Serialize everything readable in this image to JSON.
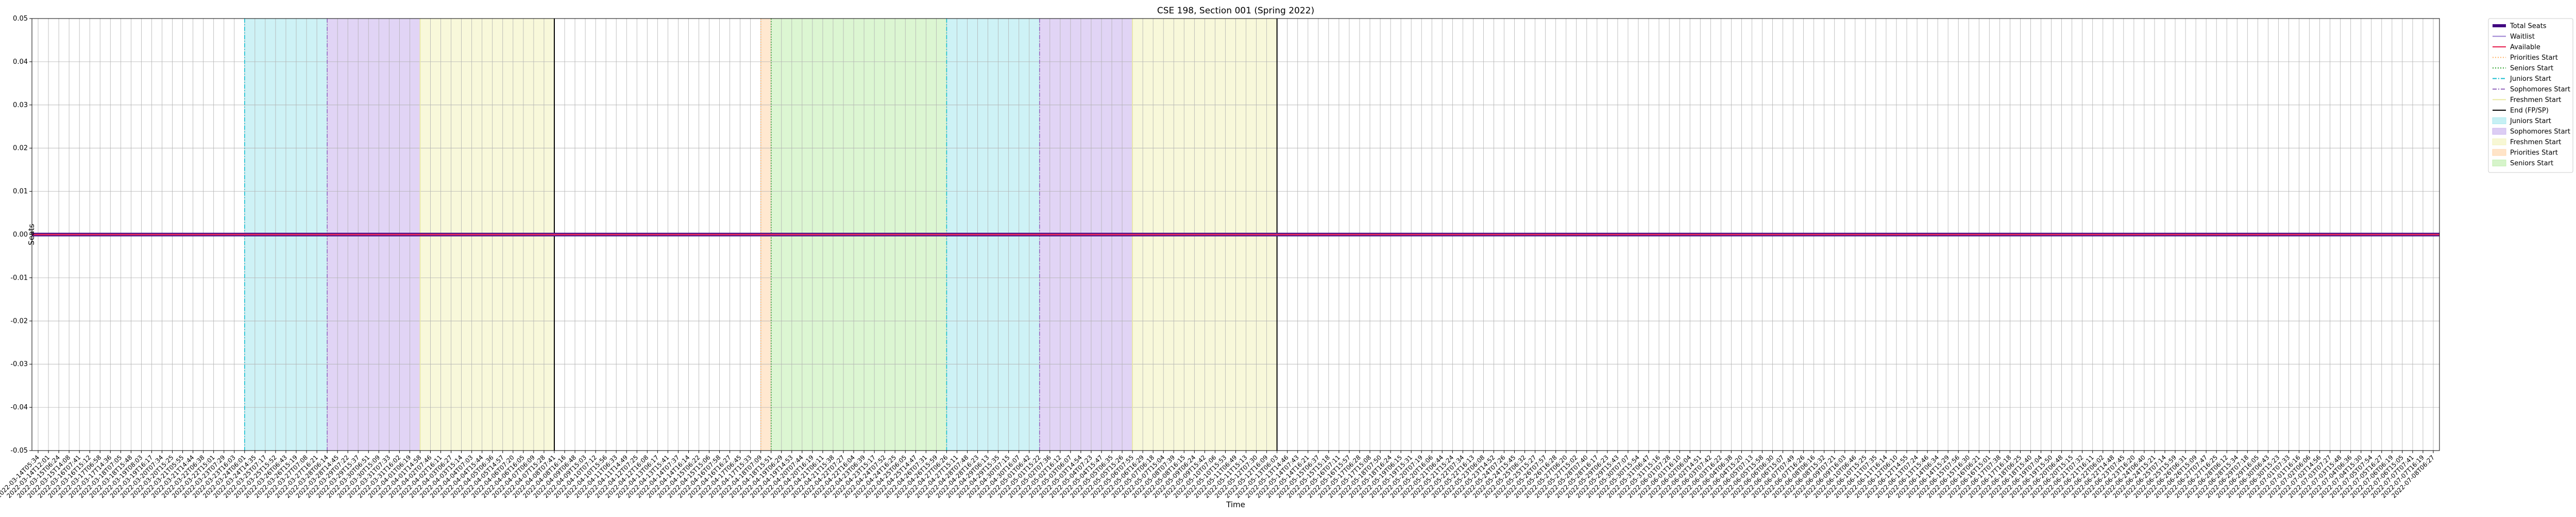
{
  "chart_data": {
    "type": "line",
    "title": "CSE 198, Section 001 (Spring 2022)",
    "xlabel": "Time",
    "ylabel": "Seats",
    "ylim": [
      -0.05,
      0.05
    ],
    "yticks": [
      -0.05,
      -0.04,
      -0.03,
      -0.02,
      -0.01,
      0.0,
      0.01,
      0.02,
      0.03,
      0.04,
      0.05
    ],
    "grid": true,
    "legend_placement": "outside-top-right",
    "x": [
      "2022-03-14T05:34",
      "2022-03-14T12:01",
      "2022-03-15T06:24",
      "2022-03-15T14:08",
      "2022-03-16T07:41",
      "2022-03-16T15:12",
      "2022-03-17T06:58",
      "2022-03-17T14:36",
      "2022-03-18T07:05",
      "2022-03-18T15:48",
      "2022-03-19T08:03",
      "2022-03-19T16:17",
      "2022-03-20T07:34",
      "2022-03-20T15:25",
      "2022-03-21T05:55",
      "2022-03-21T14:44",
      "2022-03-22T06:38",
      "2022-03-22T15:01",
      "2022-03-23T07:29",
      "2022-03-23T16:03",
      "2022-03-24T06:01",
      "2022-03-24T14:35",
      "2022-03-25T07:17",
      "2022-03-25T15:52",
      "2022-03-26T06:43",
      "2022-03-26T15:19",
      "2022-03-27T07:08",
      "2022-03-27T16:21",
      "2022-03-28T06:14",
      "2022-03-28T14:45",
      "2022-03-29T07:22",
      "2022-03-29T15:37",
      "2022-03-30T06:51",
      "2022-03-30T15:09",
      "2022-03-31T07:33",
      "2022-03-31T16:02",
      "2022-04-01T06:19",
      "2022-04-01T14:58",
      "2022-04-02T07:46",
      "2022-04-02T16:11",
      "2022-04-03T06:27",
      "2022-04-03T15:14",
      "2022-04-04T07:03",
      "2022-04-04T15:44",
      "2022-04-05T06:36",
      "2022-04-05T14:57",
      "2022-04-06T07:20",
      "2022-04-06T16:05",
      "2022-04-07T06:09",
      "2022-04-07T15:28",
      "2022-04-08T07:41",
      "2022-04-08T16:16",
      "2022-04-09T06:48",
      "2022-04-09T15:03",
      "2022-04-10T07:12",
      "2022-04-10T15:56",
      "2022-04-11T06:33",
      "2022-04-11T14:49",
      "2022-04-12T07:25",
      "2022-04-12T16:08",
      "2022-04-13T06:17",
      "2022-04-13T15:41",
      "2022-04-14T07:37",
      "2022-04-14T16:14",
      "2022-04-15T06:22",
      "2022-04-15T15:06",
      "2022-04-16T07:58",
      "2022-04-16T16:27",
      "2022-04-17T06:45",
      "2022-04-17T15:33",
      "2022-04-18T07:09",
      "2022-04-18T15:51",
      "2022-04-19T06:29",
      "2022-04-19T14:53",
      "2022-04-20T07:44",
      "2022-04-20T16:19",
      "2022-04-21T06:11",
      "2022-04-21T15:38",
      "2022-04-22T07:27",
      "2022-04-22T16:04",
      "2022-04-23T06:39",
      "2022-04-23T15:17",
      "2022-04-24T07:52",
      "2022-04-24T16:25",
      "2022-04-25T06:05",
      "2022-04-25T14:47",
      "2022-04-26T07:31",
      "2022-04-26T15:59",
      "2022-04-27T06:26",
      "2022-04-27T15:11",
      "2022-04-28T07:48",
      "2022-04-28T16:23",
      "2022-04-29T06:13",
      "2022-04-29T15:35",
      "2022-04-30T07:15",
      "2022-04-30T16:07",
      "2022-05-01T06:42",
      "2022-05-01T15:22",
      "2022-05-02T07:36",
      "2022-05-02T16:12",
      "2022-05-03T06:07",
      "2022-05-03T14:54",
      "2022-05-04T07:23",
      "2022-05-04T15:47",
      "2022-05-05T06:35",
      "2022-05-05T15:26",
      "2022-05-06T07:55",
      "2022-05-06T16:29",
      "2022-05-07T06:18",
      "2022-05-07T15:04",
      "2022-05-08T07:39",
      "2022-05-08T16:15",
      "2022-05-09T06:24",
      "2022-05-09T15:42",
      "2022-05-10T07:06",
      "2022-05-10T15:53",
      "2022-05-11T06:49",
      "2022-05-11T15:13",
      "2022-05-12T07:30",
      "2022-05-12T16:09",
      "2022-05-13T06:03",
      "2022-05-13T14:46",
      "2022-05-14T07:43",
      "2022-05-14T16:21",
      "2022-05-15T06:37",
      "2022-05-15T15:18",
      "2022-05-16T07:11",
      "2022-05-16T15:57",
      "2022-05-17T06:28",
      "2022-05-17T15:08",
      "2022-05-18T07:50",
      "2022-05-18T16:24",
      "2022-05-19T06:15",
      "2022-05-19T15:31",
      "2022-05-20T07:19",
      "2022-05-20T16:06",
      "2022-05-21T06:44",
      "2022-05-21T15:24",
      "2022-05-22T07:34",
      "2022-05-22T16:13",
      "2022-05-23T06:08",
      "2022-05-23T14:52",
      "2022-05-24T07:26",
      "2022-05-24T15:45",
      "2022-05-25T06:32",
      "2022-05-25T15:27",
      "2022-05-26T07:57",
      "2022-05-26T16:28",
      "2022-05-27T06:20",
      "2022-05-27T15:02",
      "2022-05-28T07:40",
      "2022-05-28T16:17",
      "2022-05-29T06:23",
      "2022-05-29T15:43",
      "2022-05-30T07:07",
      "2022-05-30T15:54",
      "2022-05-31T06:47",
      "2022-05-31T15:16",
      "2022-06-01T07:28",
      "2022-06-01T16:10",
      "2022-06-02T06:04",
      "2022-06-02T14:51",
      "2022-06-03T07:42",
      "2022-06-03T16:22",
      "2022-06-04T06:38",
      "2022-06-04T15:20",
      "2022-06-05T07:13",
      "2022-06-05T15:58",
      "2022-06-06T06:30",
      "2022-06-06T15:07",
      "2022-06-07T07:49",
      "2022-06-07T16:26",
      "2022-06-08T06:16",
      "2022-06-08T15:32",
      "2022-06-09T07:21",
      "2022-06-09T16:03",
      "2022-06-10T06:46",
      "2022-06-10T15:25",
      "2022-06-11T07:35",
      "2022-06-11T16:14",
      "2022-06-12T06:10",
      "2022-06-12T14:55",
      "2022-06-13T07:24",
      "2022-06-13T15:46",
      "2022-06-14T06:34",
      "2022-06-14T15:29",
      "2022-06-15T07:56",
      "2022-06-15T16:30",
      "2022-06-16T06:21",
      "2022-06-16T15:01",
      "2022-06-17T07:38",
      "2022-06-17T16:18",
      "2022-06-18T06:25",
      "2022-06-18T15:40",
      "2022-06-19T07:04",
      "2022-06-19T15:50",
      "2022-06-20T06:48",
      "2022-06-20T15:15",
      "2022-06-21T07:32",
      "2022-06-21T16:11",
      "2022-06-22T06:02",
      "2022-06-22T14:48",
      "2022-06-23T07:45",
      "2022-06-23T16:20",
      "2022-06-24T06:40",
      "2022-06-24T15:21",
      "2022-06-25T07:14",
      "2022-06-25T15:59",
      "2022-06-26T06:31",
      "2022-06-26T15:09",
      "2022-06-27T07:47",
      "2022-06-27T16:25",
      "2022-06-28T06:12",
      "2022-06-28T15:34",
      "2022-06-29T07:18",
      "2022-06-29T16:05",
      "2022-06-30T06:43",
      "2022-06-30T15:23",
      "2022-07-01T07:33",
      "2022-07-01T16:16",
      "2022-07-02T06:06",
      "2022-07-02T14:56",
      "2022-07-03T07:27",
      "2022-07-03T15:48",
      "2022-07-04T06:36",
      "2022-07-04T15:30",
      "2022-07-05T07:54",
      "2022-07-05T16:27",
      "2022-07-06T06:19",
      "2022-07-06T15:05",
      "2022-07-07T07:41",
      "2022-07-07T16:19",
      "2022-07-08T06:27"
    ],
    "series": [
      {
        "name": "Total Seats",
        "color": "#400080",
        "values_constant": 0
      },
      {
        "name": "Waitlist",
        "color": "#9a7fd1",
        "values_constant": 0
      },
      {
        "name": "Available",
        "color": "#e6194b",
        "values_constant": 0
      }
    ],
    "vlines": [
      {
        "name": "Priorities Start",
        "color": "#ffb366",
        "style": "dotted",
        "x_index": 70
      },
      {
        "name": "Seniors Start",
        "color": "#2ca02c",
        "style": "dotted",
        "x_index": 71
      },
      {
        "name": "Juniors Start",
        "color": "#17becf",
        "style": "dashdot",
        "x_index": 20
      },
      {
        "name": "Juniors Start",
        "color": "#17becf",
        "style": "dashdot",
        "x_index": 88
      },
      {
        "name": "Sophomores Start",
        "color": "#9467bd",
        "style": "dashdot",
        "x_index": 28
      },
      {
        "name": "Sophomores Start",
        "color": "#9467bd",
        "style": "dashdot",
        "x_index": 97
      },
      {
        "name": "Freshmen Start",
        "color": "#e8e8a0",
        "style": "solid",
        "x_index": 37
      },
      {
        "name": "Freshmen Start",
        "color": "#e8e8a0",
        "style": "solid",
        "x_index": 106
      },
      {
        "name": "End (FP/SP)",
        "color": "#000000",
        "style": "solid",
        "x_index": 50
      },
      {
        "name": "End (FP/SP)",
        "color": "#000000",
        "style": "solid",
        "x_index": 120
      }
    ],
    "spans": [
      {
        "name": "Juniors Start",
        "color": "#aeeaf0",
        "from_index": 20,
        "to_index": 28
      },
      {
        "name": "Sophomores Start",
        "color": "#cdb8ef",
        "from_index": 28,
        "to_index": 37
      },
      {
        "name": "Freshmen Start",
        "color": "#f3f3c2",
        "from_index": 37,
        "to_index": 50
      },
      {
        "name": "Priorities Start",
        "color": "#ffd8b0",
        "from_index": 70,
        "to_index": 71
      },
      {
        "name": "Seniors Start",
        "color": "#c4f0b4",
        "from_index": 71,
        "to_index": 88
      },
      {
        "name": "Juniors Start",
        "color": "#aeeaf0",
        "from_index": 88,
        "to_index": 97
      },
      {
        "name": "Sophomores Start",
        "color": "#cdb8ef",
        "from_index": 97,
        "to_index": 106
      },
      {
        "name": "Freshmen Start",
        "color": "#f3f3c2",
        "from_index": 106,
        "to_index": 120
      }
    ],
    "legend": [
      {
        "label": "Total Seats",
        "kind": "line",
        "color": "#400080",
        "style": "solid-thick"
      },
      {
        "label": "Waitlist",
        "kind": "line",
        "color": "#9a7fd1",
        "style": "solid"
      },
      {
        "label": "Available",
        "kind": "line",
        "color": "#e6194b",
        "style": "solid"
      },
      {
        "label": "Priorities Start",
        "kind": "line",
        "color": "#ffb366",
        "style": "dotted"
      },
      {
        "label": "Seniors Start",
        "kind": "line",
        "color": "#2ca02c",
        "style": "dotted"
      },
      {
        "label": "Juniors Start",
        "kind": "line",
        "color": "#17becf",
        "style": "dashdot"
      },
      {
        "label": "Sophomores Start",
        "kind": "line",
        "color": "#9467bd",
        "style": "dashdot"
      },
      {
        "label": "Freshmen Start",
        "kind": "line",
        "color": "#e8e8a0",
        "style": "solid"
      },
      {
        "label": "End (FP/SP)",
        "kind": "line",
        "color": "#000000",
        "style": "solid"
      },
      {
        "label": "Juniors Start",
        "kind": "patch",
        "color": "#aeeaf0"
      },
      {
        "label": "Sophomores Start",
        "kind": "patch",
        "color": "#cdb8ef"
      },
      {
        "label": "Freshmen Start",
        "kind": "patch",
        "color": "#f3f3c2"
      },
      {
        "label": "Priorities Start",
        "kind": "patch",
        "color": "#ffd8b0"
      },
      {
        "label": "Seniors Start",
        "kind": "patch",
        "color": "#c4f0b4"
      }
    ]
  }
}
